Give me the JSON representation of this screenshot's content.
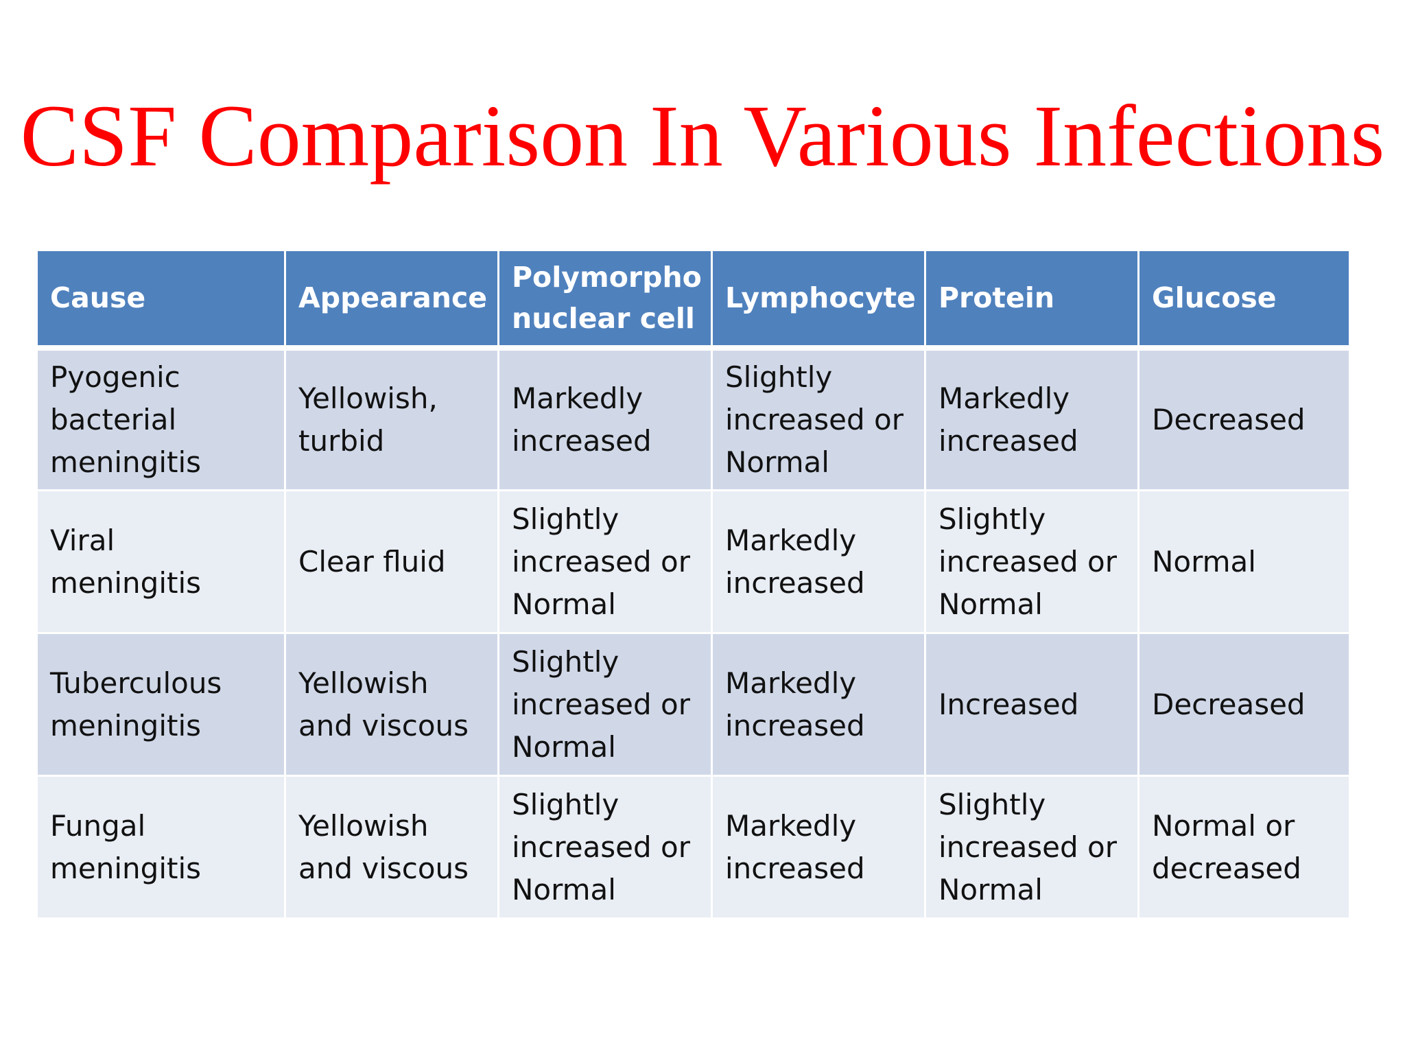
{
  "title": "CSF Comparison In Various Infections",
  "colors": {
    "title": "#ff0000",
    "header_bg": "#4f81bd",
    "row_odd_bg": "#d0d8e8",
    "row_even_bg": "#e9edf4"
  },
  "table": {
    "headers": [
      "Cause",
      "Appearance",
      "Polymorpho nuclear cell",
      "Lymphocyte",
      "Protein",
      "Glucose"
    ],
    "rows": [
      [
        "Pyogenic bacterial meningitis",
        "Yellowish, turbid",
        "Markedly increased",
        "Slightly increased or Normal",
        "Markedly increased",
        "Decreased"
      ],
      [
        "Viral meningitis",
        "Clear fluid",
        "Slightly increased or Normal",
        "Markedly increased",
        "Slightly increased or Normal",
        "Normal"
      ],
      [
        "Tuberculous meningitis",
        "Yellowish and viscous",
        "Slightly increased or Normal",
        "Markedly increased",
        "Increased",
        "Decreased"
      ],
      [
        "Fungal meningitis",
        "Yellowish and viscous",
        "Slightly increased or Normal",
        "Markedly increased",
        "Slightly increased or Normal",
        "Normal or decreased"
      ]
    ]
  }
}
